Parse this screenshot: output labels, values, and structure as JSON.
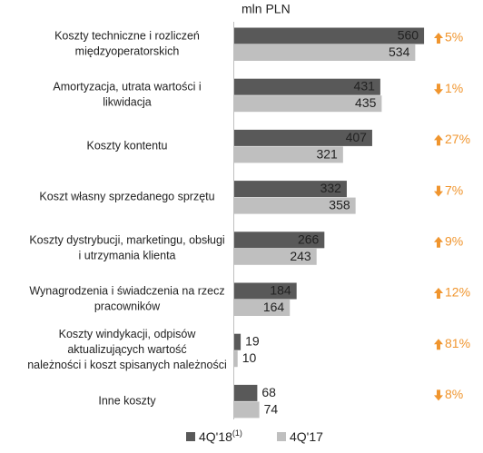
{
  "chart_data": {
    "type": "bar",
    "orientation": "horizontal",
    "unit_label": "mln PLN",
    "categories": [
      [
        "Koszty techniczne i rozliczeń",
        "międzyoperatorskich"
      ],
      [
        "Amortyzacja, utrata wartości i",
        "likwidacja"
      ],
      [
        "Koszty kontentu"
      ],
      [
        "Koszt własny sprzedanego sprzętu"
      ],
      [
        "Koszty dystrybucji, marketingu, obsługi",
        "i utrzymania klienta"
      ],
      [
        "Wynagrodzenia i świadczenia na rzecz",
        "pracowników"
      ],
      [
        "Koszty windykacji, odpisów",
        "aktualizujących wartość",
        "należności i koszt spisanych należności"
      ],
      [
        "Inne koszty"
      ]
    ],
    "series": [
      {
        "name": "4Q'18",
        "name_note": "(1)",
        "color": "#595959",
        "values": [
          560,
          431,
          407,
          332,
          266,
          184,
          19,
          68
        ]
      },
      {
        "name": "4Q'17",
        "color": "#bfbfbf",
        "values": [
          534,
          435,
          321,
          358,
          243,
          164,
          10,
          74
        ]
      }
    ],
    "changes": [
      "5%",
      "1%",
      "27%",
      "7%",
      "9%",
      "12%",
      "81%",
      "8%"
    ],
    "change_directions": [
      "up",
      "down",
      "up",
      "down",
      "up",
      "up",
      "up",
      "down"
    ],
    "change_color": "#f0952e",
    "xlim": [
      0,
      600
    ]
  }
}
